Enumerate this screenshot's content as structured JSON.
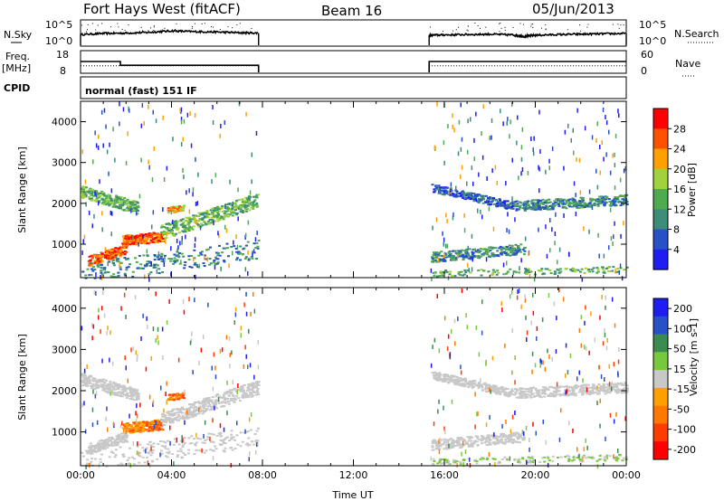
{
  "header": {
    "title": "Fort Hays West (fitACF)",
    "beam": "Beam 16",
    "date": "05/Jun/2013"
  },
  "side_labels": {
    "nsky": "N.Sky",
    "nsearch": "N.Search",
    "freq": "Freq.",
    "freq_unit": "[MHz]",
    "nave": "Nave",
    "cpid": "CPID",
    "cpid_value": "normal (fast) 151 IF"
  },
  "colors": {
    "frame": "#000000",
    "power_scale": [
      "#1e1ef0",
      "#2850c8",
      "#3c8c78",
      "#50aa50",
      "#a0d23c",
      "#ffa000",
      "#ff5000",
      "#ff0000"
    ],
    "velocity_scale": [
      "#1e1ef0",
      "#2850c8",
      "#3c8c50",
      "#78c83c",
      "#c8c8c8",
      "#ffa000",
      "#ff7800",
      "#ff3c00",
      "#ff0000"
    ]
  },
  "chart_data": [
    {
      "type": "line",
      "name_panel": "noise",
      "left_label": "N.Sky",
      "right_label": "N.Search",
      "y_ticks_left": [
        "10^5",
        "10^0"
      ],
      "y_ticks_right": [
        "10^5",
        "10^0"
      ],
      "x_range_hours": [
        0,
        24
      ],
      "data_gaps_hours": [
        [
          7.83,
          15.33
        ]
      ],
      "segments": [
        {
          "x": [
            0.0,
            1.0,
            2.0,
            3.0,
            4.0,
            5.0,
            6.0,
            7.0,
            7.83
          ],
          "y": [
            2.7,
            3.0,
            3.1,
            3.3,
            3.7,
            3.5,
            3.4,
            3.2,
            3.1
          ]
        },
        {
          "x": [
            15.33,
            16.0,
            17.0,
            18.0,
            19.0,
            19.5,
            20.0,
            21.0,
            22.0,
            23.0,
            24.0
          ],
          "y": [
            2.5,
            2.6,
            2.7,
            2.8,
            2.6,
            2.2,
            2.5,
            2.7,
            2.8,
            2.9,
            3.0
          ]
        }
      ]
    },
    {
      "type": "line",
      "name_panel": "frequency",
      "left_label": "Freq.",
      "left_unit": "[MHz]",
      "right_label": "Nave",
      "y_ticks_left": [
        "18",
        "8"
      ],
      "y_ticks_right": [
        "60",
        "0"
      ],
      "x_range_hours": [
        0,
        24
      ],
      "freq_mhz": {
        "x": [
          0.0,
          1.75,
          1.75,
          7.83,
          15.33,
          24.0
        ],
        "y": [
          14.5,
          14.5,
          12.0,
          12.0,
          14.5,
          14.5
        ]
      },
      "nave": {
        "x": [
          0.0,
          7.83,
          15.33,
          24.0
        ],
        "y": [
          22,
          22,
          22,
          22
        ]
      }
    },
    {
      "type": "heatmap",
      "name_panel": "power",
      "ylabel": "Slant Range [km]",
      "xlabel": "",
      "x_range_hours": [
        0,
        24
      ],
      "ylim": [
        180,
        4500
      ],
      "y_ticks": [
        1000,
        2000,
        3000,
        4000
      ],
      "colorbar_label": "Power [dB]",
      "colorbar_ticks": [
        4,
        8,
        12,
        16,
        20,
        24,
        28
      ],
      "colorbar_range": [
        0,
        32
      ]
    },
    {
      "type": "heatmap",
      "name_panel": "velocity",
      "ylabel": "Slant Range [km]",
      "xlabel": "Time UT",
      "x_range_hours": [
        0,
        24
      ],
      "ylim": [
        180,
        4500
      ],
      "y_ticks": [
        1000,
        2000,
        3000,
        4000
      ],
      "x_tick_labels": [
        "00:00",
        "04:00",
        "08:00",
        "12:00",
        "16:00",
        "20:00",
        "00:00"
      ],
      "x_ticks_hours": [
        0,
        4,
        8,
        12,
        16,
        20,
        24
      ],
      "colorbar_label": "Velocity [m s-1]",
      "colorbar_ticks": [
        "200",
        "100",
        "50",
        "15",
        "-15",
        "-50",
        "-100",
        "-200"
      ]
    }
  ]
}
